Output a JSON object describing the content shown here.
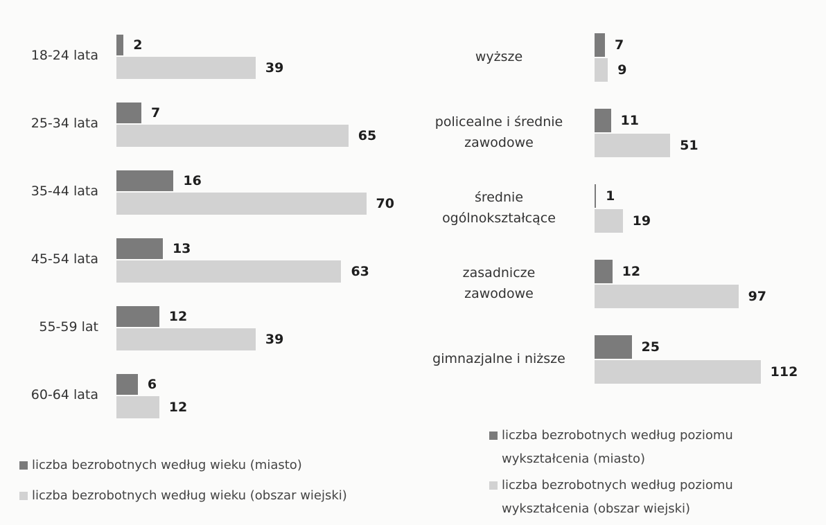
{
  "chart_data": [
    {
      "type": "bar",
      "orientation": "horizontal",
      "categories": [
        "18-24 lata",
        "25-34 lata",
        "35-44 lata",
        "45-54 lata",
        "55-59 lat",
        "60-64 lata"
      ],
      "series": [
        {
          "name": "liczba bezrobotnych według wieku (miasto)",
          "color": "#7b7b7b",
          "values": [
            2,
            7,
            16,
            13,
            12,
            6
          ]
        },
        {
          "name": "liczba bezrobotnych według wieku (obszar wiejski)",
          "color": "#d2d2d2",
          "values": [
            39,
            65,
            70,
            63,
            39,
            12
          ]
        }
      ]
    },
    {
      "type": "bar",
      "orientation": "horizontal",
      "categories": [
        "wyższe",
        "policealne i średnie\nzawodowe",
        "średnie\nogólnokształcące",
        "zasadnicze\nzawodowe",
        "gimnazjalne i niższe"
      ],
      "series": [
        {
          "name": "liczba bezrobotnych według poziomu wykształcenia (miasto)",
          "color": "#7b7b7b",
          "values": [
            7,
            11,
            1,
            12,
            25
          ]
        },
        {
          "name": "liczba bezrobotnych według poziomu wykształcenia (obszar wiejski)",
          "color": "#d2d2d2",
          "values": [
            9,
            51,
            19,
            97,
            112
          ]
        }
      ]
    }
  ]
}
